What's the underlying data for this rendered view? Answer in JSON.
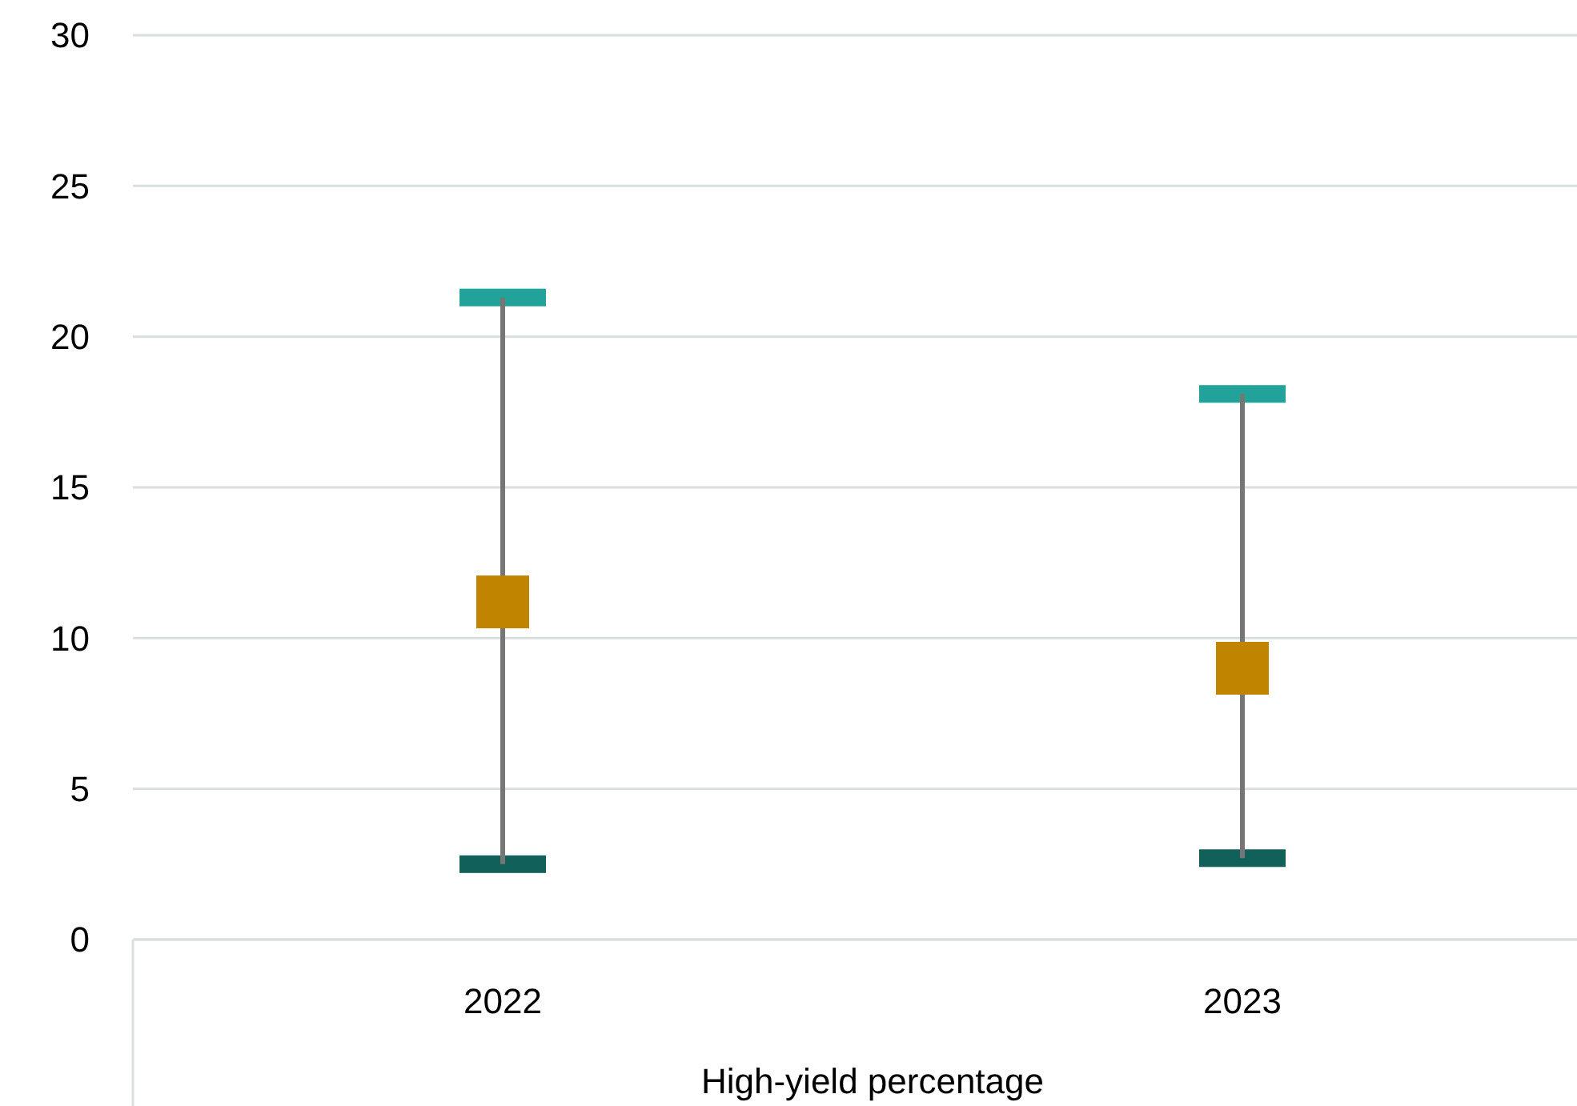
{
  "chart_data": {
    "type": "scatter",
    "xlabel": "High-yield percentage",
    "categories": [
      "2022",
      "2023"
    ],
    "series": [
      {
        "color": "#c08400",
        "values": [
          11.2,
          9.0
        ],
        "errors": [
          [
            2.5,
            21.3
          ],
          [
            2.7,
            18.1
          ]
        ],
        "marker": "square"
      }
    ],
    "ylim": [
      0,
      30
    ],
    "yticks": [
      0,
      5,
      10,
      15,
      20,
      25,
      30
    ],
    "grid": "y"
  }
}
